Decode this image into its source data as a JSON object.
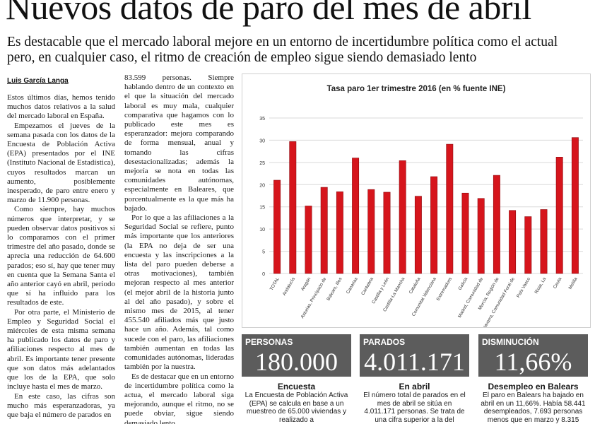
{
  "article": {
    "headline": "Nuevos datos de paro del mes de abril",
    "subhead": "Es destacable que el mercado laboral mejore en un entorno de incertidumbre política como el actual pero, en cualquier caso, el ritmo de creación de empleo sigue siendo demasiado lento",
    "byline": "Luis García Langa",
    "col1": [
      "Estos últimos días, hemos tenido muchos datos relativos a la salud del mercado laboral en España.",
      "Empezamos el jueves de la semana pasada con los datos de la Encuesta de Población Activa (EPA) presentados por el INE (Instituto Nacional de Estadística), cuyos resultados marcan un aumento, posiblemente inesperado, de paro entre enero y marzo de 11.900 personas.",
      "Como siempre, hay muchos números que interpretar, y se pueden observar datos positivos si lo comparamos con el primer trimestre del año pasado, donde se aprecia una reducción de 64.600 parados; eso sí, hay que tener muy en cuenta que la Semana Santa el año anterior cayó en abril, periodo que sí ha influido para los resultados de este.",
      "Por otra parte, el Ministerio de Empleo y Seguridad Social el miércoles de esta misma semana ha publicado los datos de paro y afiliaciones respecto al mes de abril. Es importante tener presente que son datos más adelantados que los de la EPA, que solo incluye hasta el mes de marzo.",
      "En este caso, las cifras son mucho más esperanzadoras, ya que baja el número de parados en"
    ],
    "col2": [
      "83.599 personas. Siempre hablando dentro de un contexto en el que la situación del mercado laboral es muy mala, cualquier comparativa que hagamos con lo publicado este mes es esperanzador: mejora comparando de forma mensual, anual y tomando las cifras desestacionalizadas; además la mejoría se nota en todas las comunidades autónomas, especialmente en Baleares, que porcentualmente es la que más ha bajado.",
      "Por lo que a las afiliaciones a la Seguridad Social se refiere, punto más importante que los anteriores (la EPA no deja de ser una encuesta y las inscripciones a la lista del paro pueden deberse a otras motivaciones), también mejoran respecto al mes anterior (el mejor abril de la historia junto al del año pasado), y sobre el mismo mes de 2015, al tener 455.540 afiliados más que justo hace un año. Además, tal como sucede con el paro, las afiliaciones también aumentan en todas las comunidades autónomas, lideradas también por la nuestra.",
      "Es de destacar que en un entorno de incertidumbre política como la actua, el mercado laboral siga mejorando, aunque el ritmo, no se puede obviar, sigue siendo demasiado lento."
    ]
  },
  "chart_data": {
    "type": "bar",
    "title": "Tasa paro 1er trimestre 2016 (en % fuente INE)",
    "categories": [
      "TOTAL",
      "Andalucía",
      "Aragón",
      "Asturias, Principado de",
      "Balears, Illes",
      "Canarias",
      "Cantabria",
      "Castilla y León",
      "Castilla-La Mancha",
      "Cataluña",
      "Comunitat Valenciana",
      "Extremadura",
      "Galicia",
      "Madrid, Comunidad de",
      "Murcia, Región de",
      "Navarra, Comunidad Foral de",
      "País Vasco",
      "Rioja, La",
      "Ceuta",
      "Melilla"
    ],
    "values": [
      21.0,
      29.7,
      15.2,
      19.4,
      18.4,
      26.0,
      18.9,
      18.3,
      25.4,
      17.4,
      21.8,
      29.1,
      18.1,
      16.9,
      22.1,
      14.2,
      12.8,
      14.4,
      26.2,
      30.6
    ],
    "ylim": [
      0,
      35
    ],
    "yticks": [
      0,
      5,
      10,
      15,
      20,
      25,
      30,
      35
    ],
    "grid": true,
    "colors": {
      "bar": "#d6151c",
      "bar_edge": "#8e0d12",
      "grid": "#d9d9d9",
      "text": "#333333"
    }
  },
  "stats": [
    {
      "label": "PERSONAS",
      "value": "180.000",
      "title": "Encuesta",
      "body": "La Encuesta de Población Activa (EPA) se calcula en base a un muestreo de 65.000 viviendas y realizado a"
    },
    {
      "label": "PARADOS",
      "value": "4.011.171",
      "title": "En abril",
      "body": "El número total de parados en el mes de abril se sitúa en 4.011.171 personas. Se trata de una cifra superior a la del"
    },
    {
      "label": "DISMINUCIÓN",
      "value": "11,66%",
      "title": "Desempleo en Balears",
      "body": "El paro en Balears ha bajado en abril en un 11,66%. Había 58.441 desempleados, 7.693 personas menos que en marzo y 8.315"
    }
  ]
}
